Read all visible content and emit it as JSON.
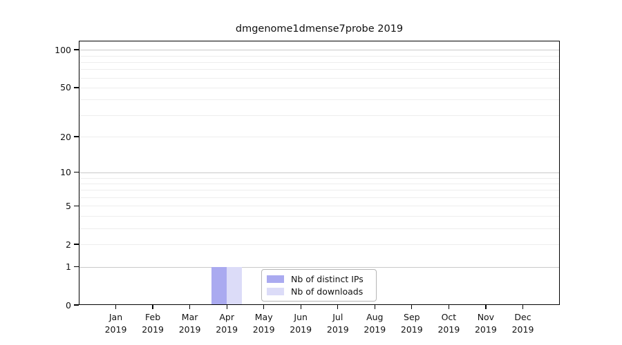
{
  "chart_data": {
    "type": "bar",
    "title": "dmgenome1dmense7probe 2019",
    "categories": [
      "Jan",
      "Feb",
      "Mar",
      "Apr",
      "May",
      "Jun",
      "Jul",
      "Aug",
      "Sep",
      "Oct",
      "Nov",
      "Dec"
    ],
    "year": "2019",
    "series": [
      {
        "name": "Nb of distinct IPs",
        "color": "#aaaaf0",
        "values": [
          0,
          0,
          0,
          1,
          0,
          0,
          0,
          0,
          0,
          0,
          0,
          0
        ]
      },
      {
        "name": "Nb of downloads",
        "color": "#dcdcf8",
        "values": [
          0,
          0,
          0,
          1,
          0,
          0,
          0,
          0,
          0,
          0,
          0,
          0
        ]
      }
    ],
    "xlabel": "",
    "ylabel": "",
    "y_scale": "symlog-log1p",
    "ylim": [
      0,
      118
    ],
    "y_ticks": [
      0,
      1,
      2,
      5,
      10,
      20,
      50,
      100
    ],
    "grid": {
      "on": true,
      "minor_values": [
        2,
        3,
        4,
        5,
        6,
        7,
        8,
        9,
        20,
        30,
        40,
        50,
        60,
        70,
        80,
        90
      ],
      "major_values": [
        1,
        10,
        100
      ],
      "minor_color": "#ededed",
      "major_color": "#c9c9c9"
    },
    "legend": {
      "position": "inside-bottom-center"
    },
    "colors": {
      "axis": "#000000",
      "background": "#ffffff",
      "text": "#111111"
    }
  }
}
